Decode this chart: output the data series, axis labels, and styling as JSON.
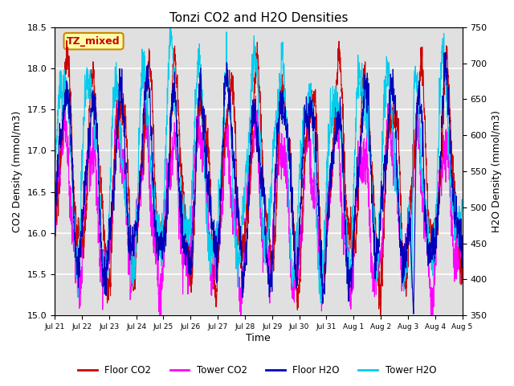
{
  "title": "Tonzi CO2 and H2O Densities",
  "xlabel": "Time",
  "ylabel_left": "CO2 Density (mmol/m3)",
  "ylabel_right": "H2O Density (mmol/m3)",
  "ylim_left": [
    15.0,
    18.5
  ],
  "ylim_right": [
    350,
    750
  ],
  "annotation_text": "TZ_mixed",
  "annotation_color": "#cc0000",
  "annotation_bg": "#ffffaa",
  "annotation_edge": "#cc8800",
  "colors": {
    "floor_co2": "#cc0000",
    "tower_co2": "#ff00ff",
    "floor_h2o": "#0000bb",
    "tower_h2o": "#00ccee"
  },
  "legend_labels": [
    "Floor CO2",
    "Tower CO2",
    "Floor H2O",
    "Tower H2O"
  ],
  "xtick_labels": [
    "Jul 21",
    "Jul 22",
    "Jul 23",
    "Jul 24",
    "Jul 25",
    "Jul 26",
    "Jul 27",
    "Jul 28",
    "Jul 29",
    "Jul 30",
    "Jul 31",
    "Aug 1",
    "Aug 2",
    "Aug 3",
    "Aug 4",
    "Aug 5"
  ],
  "yticks_left": [
    15.0,
    15.5,
    16.0,
    16.5,
    17.0,
    17.5,
    18.0,
    18.5
  ],
  "yticks_right": [
    350,
    400,
    450,
    500,
    550,
    600,
    650,
    700,
    750
  ],
  "background_color": "#e0e0e0",
  "grid_color": "#ffffff",
  "n_points": 3500,
  "linewidth": 0.8
}
